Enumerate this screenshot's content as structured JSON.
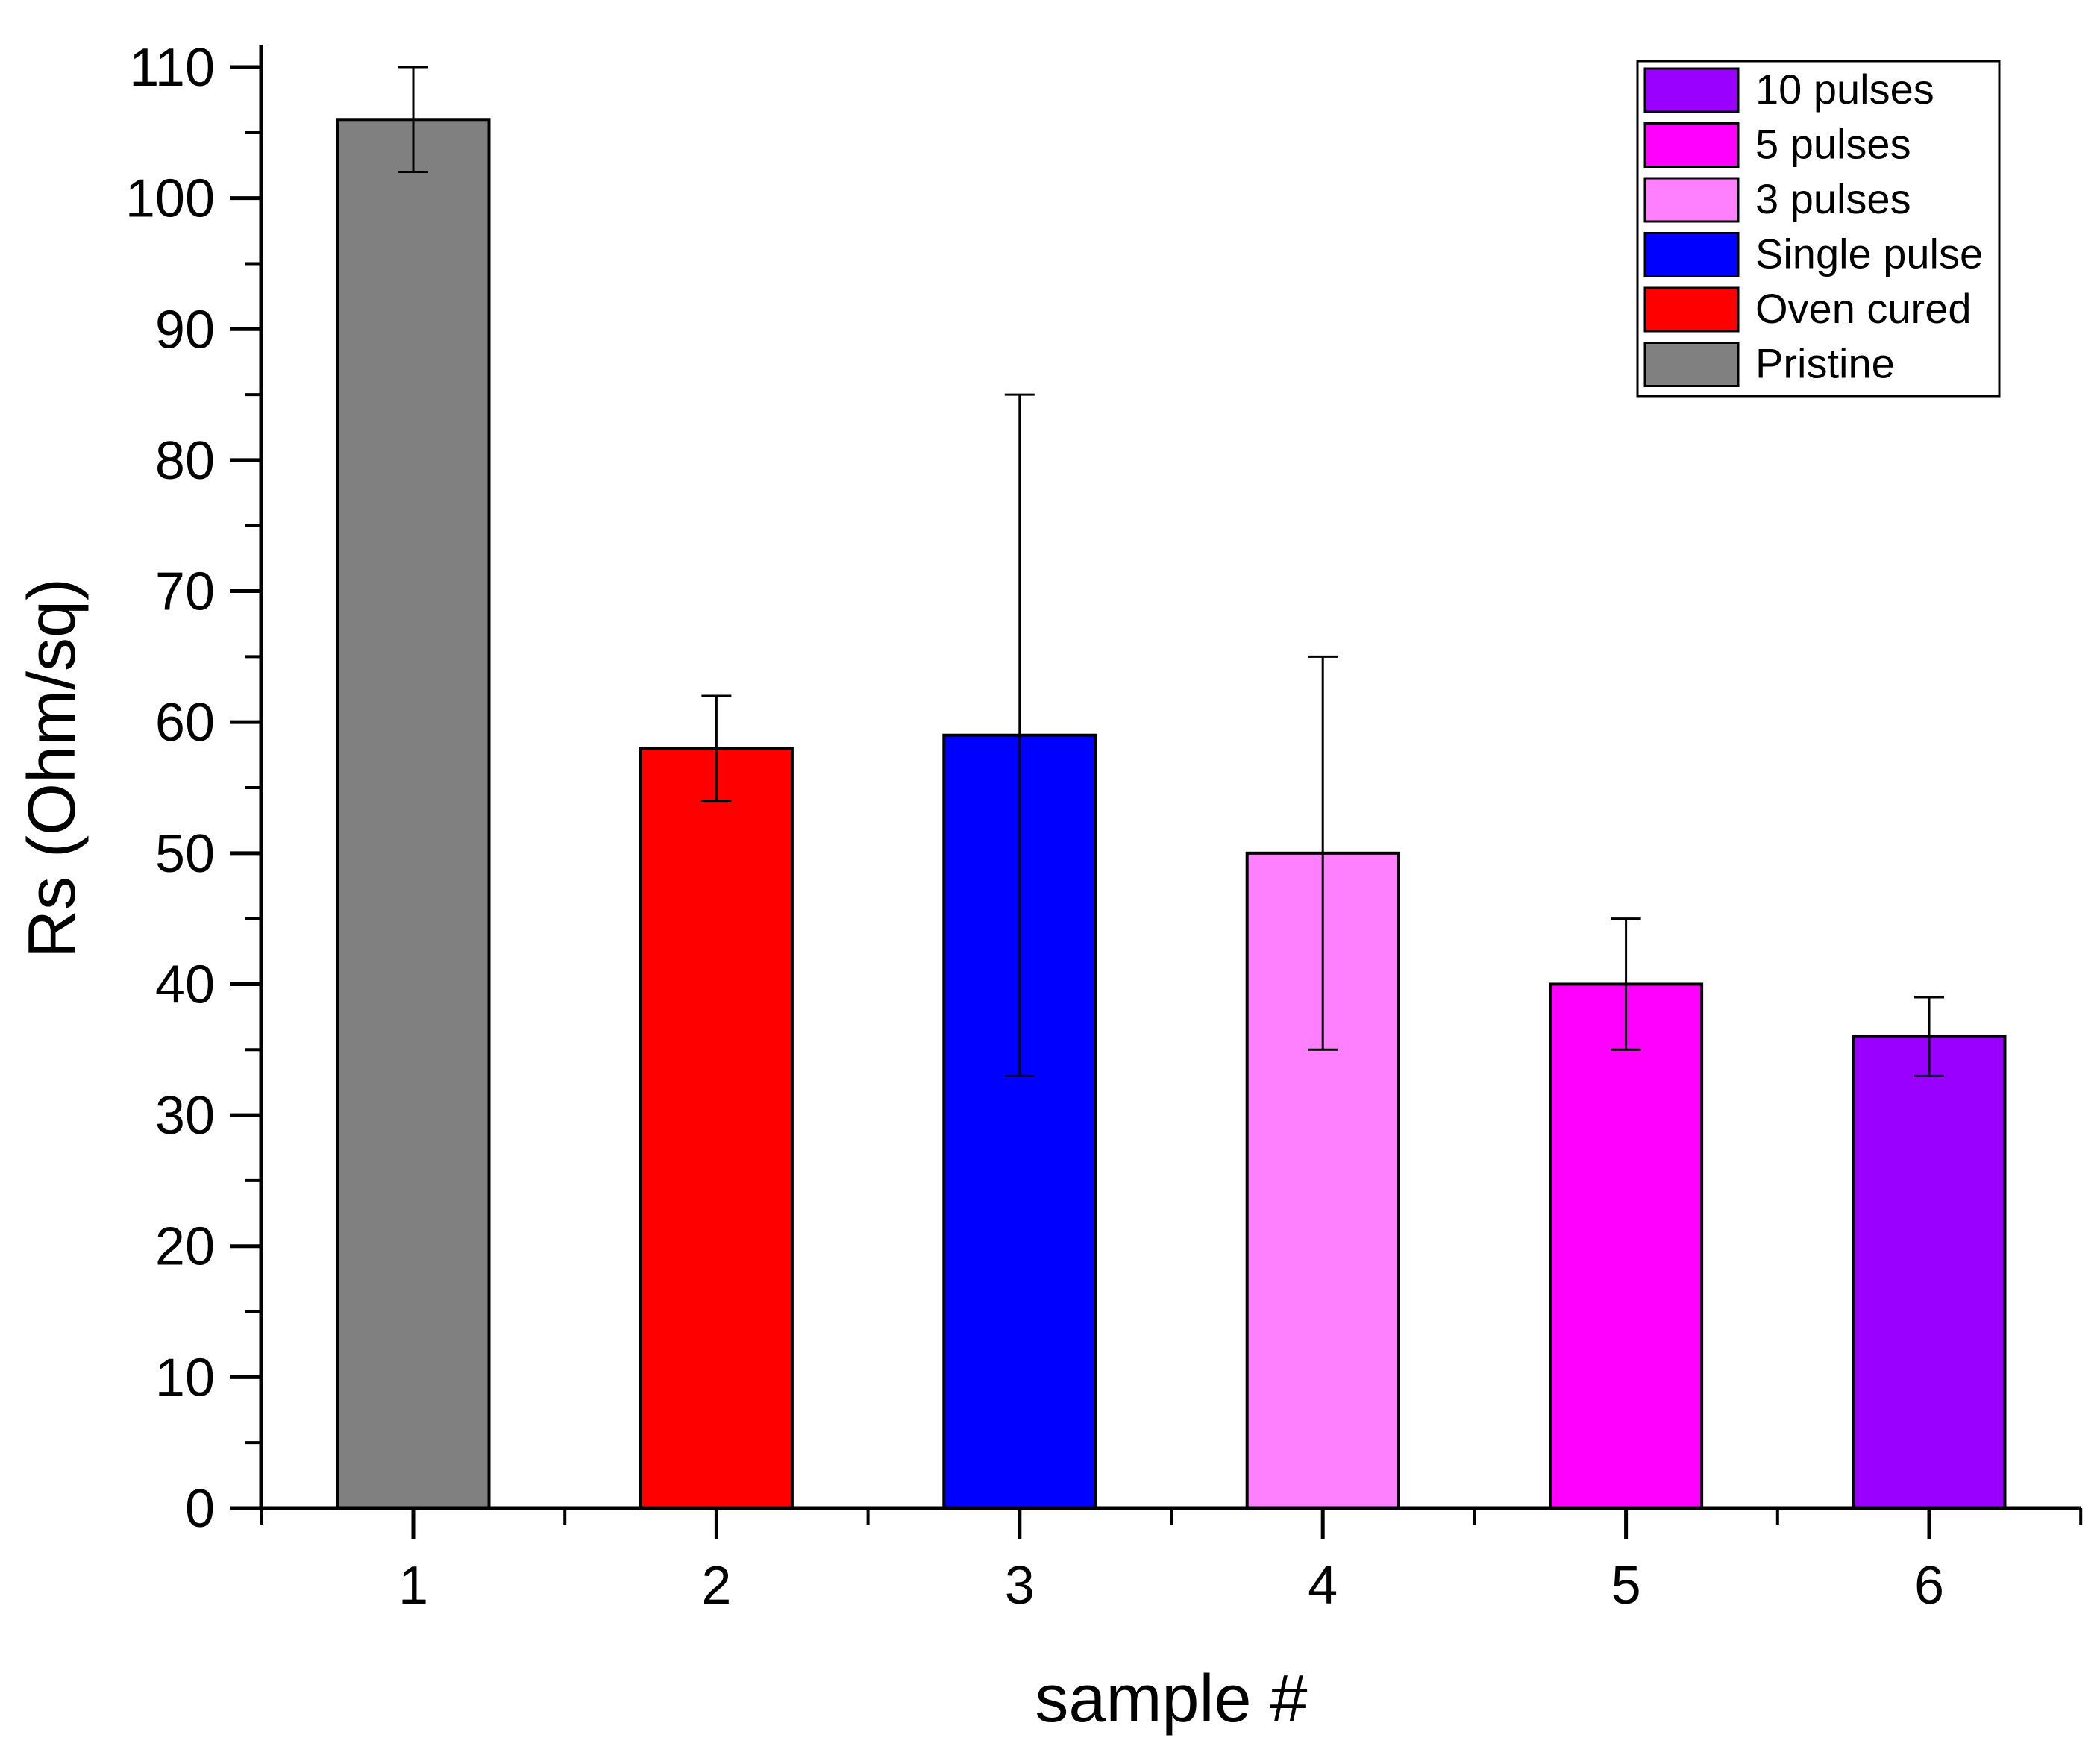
{
  "chart_data": {
    "type": "bar",
    "title": "",
    "xlabel": "sample #",
    "ylabel": "Rs (Ohm/sq)",
    "categories": [
      "1",
      "2",
      "3",
      "4",
      "5",
      "6"
    ],
    "series": [
      {
        "name": "Pristine",
        "category": "1",
        "value": 106,
        "error_low": 102,
        "error_high": 110,
        "color": "#808080"
      },
      {
        "name": "Oven cured",
        "category": "2",
        "value": 58,
        "error_low": 54,
        "error_high": 62,
        "color": "#ff0000"
      },
      {
        "name": "Single pulse",
        "category": "3",
        "value": 59,
        "error_low": 33,
        "error_high": 85,
        "color": "#0000ff"
      },
      {
        "name": "3 pulses",
        "category": "4",
        "value": 50,
        "error_low": 35,
        "error_high": 65,
        "color": "#ff80ff"
      },
      {
        "name": "5 pulses",
        "category": "5",
        "value": 40,
        "error_low": 35,
        "error_high": 45,
        "color": "#ff00ff"
      },
      {
        "name": "10 pulses",
        "category": "6",
        "value": 36,
        "error_low": 33,
        "error_high": 39,
        "color": "#9900ff"
      }
    ],
    "ylim": [
      0,
      110
    ],
    "yticks": [
      "0",
      "10",
      "20",
      "30",
      "40",
      "50",
      "60",
      "70",
      "80",
      "90",
      "100",
      "110"
    ],
    "legend": {
      "position": "top-right",
      "order": [
        "10 pulses",
        "5 pulses",
        "3 pulses",
        "Single pulse",
        "Oven cured",
        "Pristine"
      ]
    },
    "grid": false
  }
}
